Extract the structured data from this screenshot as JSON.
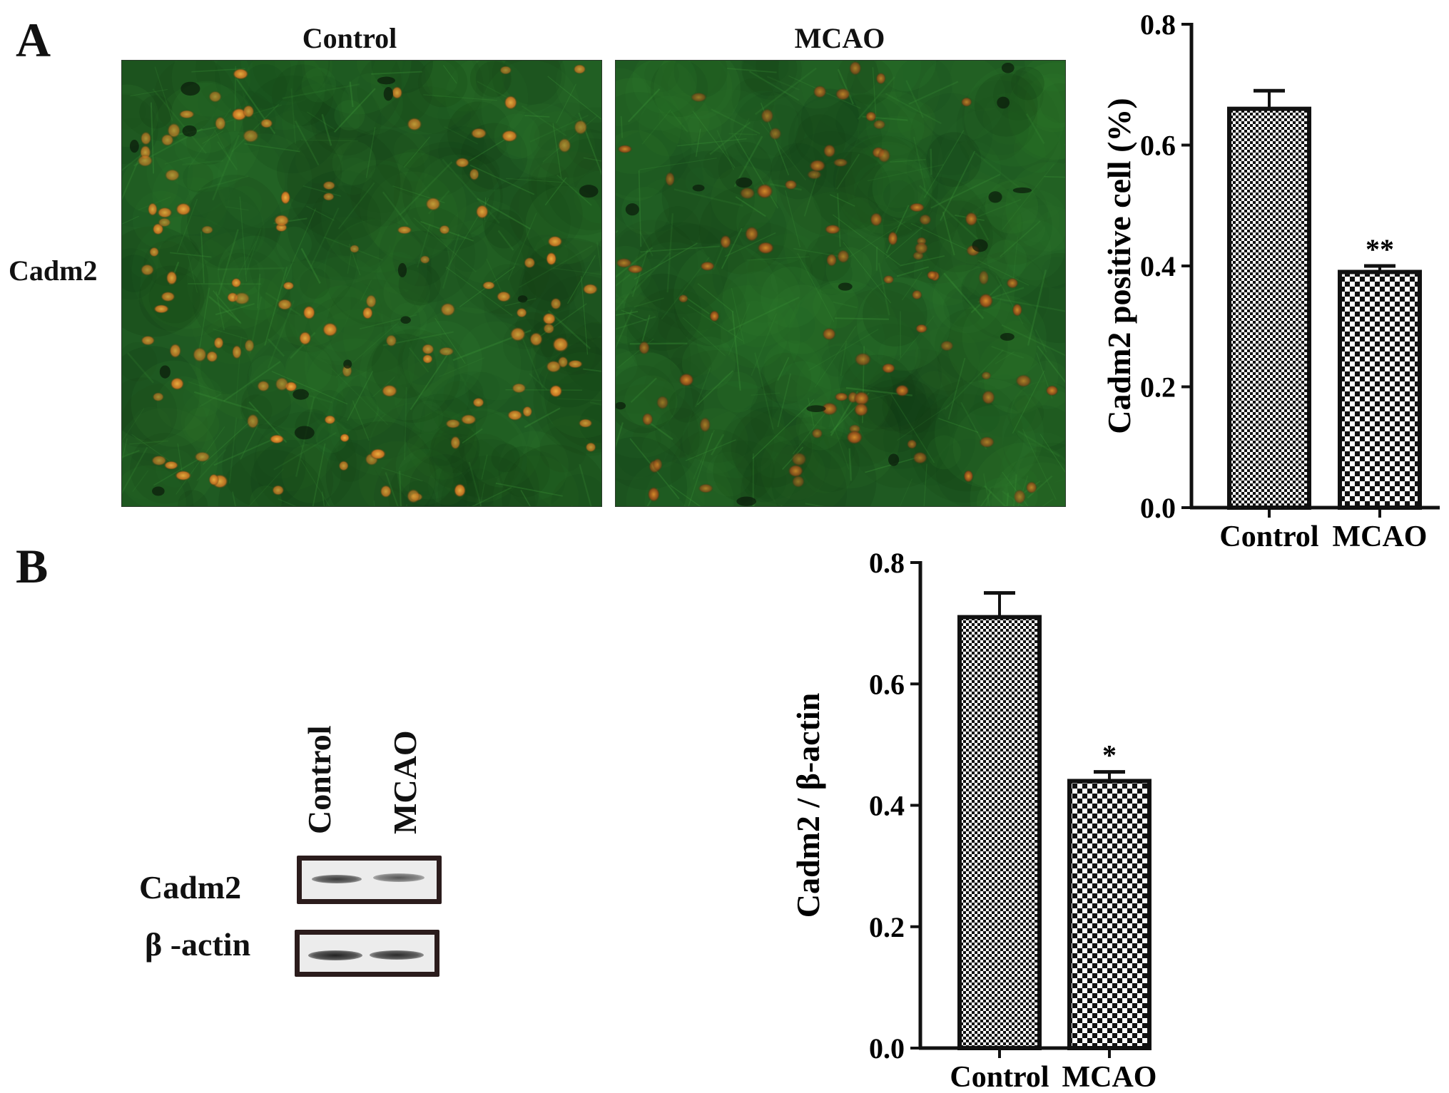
{
  "panel_a": {
    "letter": "A",
    "columns": [
      "Control",
      "MCAO"
    ],
    "row_label": "Cadm2"
  },
  "panel_b": {
    "letter": "B",
    "lanes": [
      "Control",
      "MCAO"
    ],
    "blot_rows": [
      "Cadm2",
      "β -actin"
    ]
  },
  "colors": {
    "background": "#ffffff",
    "ink": "#111111",
    "tissue_green": "#1f5a22",
    "cell_orange": "#d9922a"
  },
  "chart_data": [
    {
      "type": "bar",
      "categories": [
        "Control",
        "MCAO"
      ],
      "values": [
        0.66,
        0.39
      ],
      "errors": [
        0.03,
        0.01
      ],
      "significance": [
        "",
        "**"
      ],
      "title": "",
      "xlabel": "",
      "ylabel": "Cadm2 positive cell (%)",
      "ylim": [
        0,
        0.8
      ],
      "yticks": [
        "0.0",
        "0.2",
        "0.4",
        "0.6",
        "0.8"
      ],
      "patterns": [
        "fine-check",
        "coarse-check"
      ],
      "grid": false
    },
    {
      "type": "bar",
      "categories": [
        "Control",
        "MCAO"
      ],
      "values": [
        0.71,
        0.44
      ],
      "errors": [
        0.04,
        0.015
      ],
      "significance": [
        "",
        "*"
      ],
      "title": "",
      "xlabel": "",
      "ylabel": "Cadm2 / β-actin",
      "ylim": [
        0,
        0.8
      ],
      "yticks": [
        "0.0",
        "0.2",
        "0.4",
        "0.6",
        "0.8"
      ],
      "patterns": [
        "fine-check",
        "coarse-check"
      ],
      "grid": false
    }
  ]
}
